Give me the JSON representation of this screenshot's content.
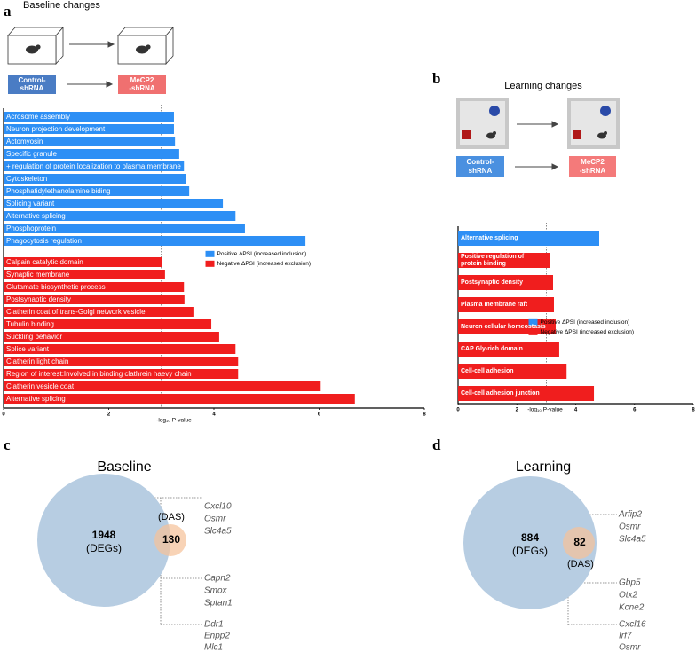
{
  "panel_labels": [
    "a",
    "b",
    "c",
    "d"
  ],
  "schematics": [
    {
      "title": "Baseline changes",
      "control": "Control-\nshRNA",
      "treatment": "MeCP2\n-shRNA"
    },
    {
      "title": "Learning changes",
      "control": "Control-\nshRNA",
      "treatment": "MeCP2\n-shRNA"
    }
  ],
  "chart_data": [
    {
      "type": "bar",
      "orientation": "horizontal",
      "xlabel": "-log₁₀ P-value",
      "xlim": [
        0,
        8
      ],
      "xticks": [
        0,
        2,
        4,
        6,
        8
      ],
      "reference_line": 3,
      "legend": "center",
      "categories": [
        "Acrosome assembly",
        "Neuron projection development",
        "Actomyosin",
        "Specific granule",
        "+ regulation of protein localization to plasma membrane",
        "Cytoskeleton",
        "Phosphatidylethanolamine biding",
        "Splicing variant",
        "Alternative splicing",
        "Phosphoprotein",
        "Phagocytosis regulation",
        "Calpain catalytic domain",
        "Synaptic membrane",
        "Glutamate biosynthetic process",
        "Postsynaptic density",
        "Clatherin coat of trans-Golgi network vesicle",
        "Tubulin binding",
        "Suckling behavior",
        "Splice variant",
        "Clatherin light chain",
        "Region of interest:Involved in binding clathrein haevy chain",
        "Clatherin vesicle coat",
        "Alternative splicing"
      ],
      "series": [
        {
          "name": "Positive ΔPSI (increased inclusion)",
          "color": "#2d8ff5",
          "values": [
            3.24,
            3.24,
            3.26,
            3.34,
            3.43,
            3.46,
            3.53,
            4.17,
            4.41,
            4.59,
            5.74,
            null,
            null,
            null,
            null,
            null,
            null,
            null,
            null,
            null,
            null,
            null,
            null
          ]
        },
        {
          "name": "Negative ΔPSI (increased exclusion)",
          "color": "#f01e1e",
          "values": [
            null,
            null,
            null,
            null,
            null,
            null,
            null,
            null,
            null,
            null,
            null,
            3.02,
            3.07,
            3.43,
            3.44,
            3.61,
            3.95,
            4.1,
            4.41,
            4.46,
            4.46,
            6.03,
            6.68
          ]
        }
      ]
    },
    {
      "type": "bar",
      "orientation": "horizontal",
      "xlabel": "-log₁₀ P-value",
      "xlim": [
        0,
        8
      ],
      "xticks": [
        0,
        2,
        4,
        6,
        8
      ],
      "reference_line": 3,
      "legend": "center-right",
      "categories": [
        "Alternative splicing",
        "Positive regulation of\nprotein binding",
        "Postsynaptic density",
        "Plasma membrane raft",
        "Neuron cellular homeostasis",
        "CAP Gly-rich domain",
        "Cell-cell adhesion",
        "Cell-cell adhesion junction"
      ],
      "series": [
        {
          "name": "Positive ΔPSI (increased inclusion)",
          "color": "#2d8ff5",
          "values": [
            4.8,
            null,
            null,
            null,
            null,
            null,
            null,
            null
          ]
        },
        {
          "name": "Negative ΔPSI (increased exclusion)",
          "color": "#f01e1e",
          "values": [
            null,
            3.11,
            3.23,
            3.26,
            3.32,
            3.44,
            3.69,
            4.62
          ]
        }
      ]
    }
  ],
  "venn": [
    {
      "title": "Baseline",
      "degs": {
        "count": 1948,
        "label": "(DEGs)"
      },
      "das": {
        "count": 130,
        "label": "(DAS)"
      },
      "genes": [
        [
          "Cxcl10",
          "Osmr",
          "Slc4a5"
        ],
        [
          "Capn2",
          "Smox",
          "Sptan1"
        ],
        [
          "Ddr1",
          "Enpp2",
          "Mlc1"
        ]
      ]
    },
    {
      "title": "Learning",
      "degs": {
        "count": 884,
        "label": "(DEGs)"
      },
      "das": {
        "count": 82,
        "label": "(DAS)"
      },
      "genes": [
        [
          "Arfip2",
          "Osmr",
          "Slc4a5"
        ],
        [
          "Gbp5",
          "Otx2",
          "Kcne2"
        ],
        [
          "Cxcl16",
          "Irf7",
          "Osmr"
        ]
      ]
    }
  ]
}
